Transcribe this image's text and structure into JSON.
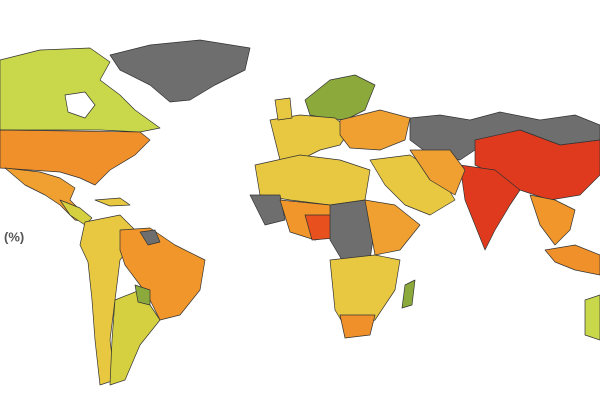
{
  "legend": {
    "label": "(%)"
  }
}
